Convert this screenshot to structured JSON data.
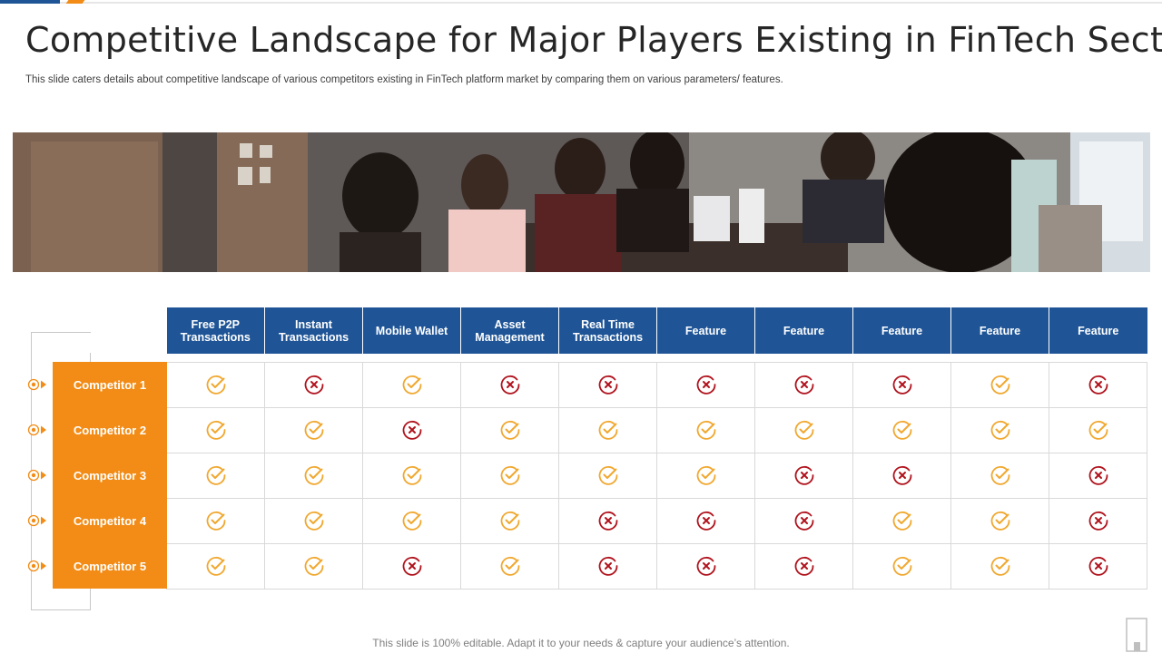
{
  "title": "Competitive Landscape for Major Players Existing in FinTech Sector",
  "subtitle": "This slide caters details about competitive landscape of various competitors existing in FinTech platform market by comparing them on various parameters/ features.",
  "columns": [
    "Free P2P Transactions",
    "Instant Transactions",
    "Mobile Wallet",
    "Asset Management",
    "Real Time Transactions",
    "Feature",
    "Feature",
    "Feature",
    "Feature",
    "Feature"
  ],
  "rows": [
    {
      "label": "Competitor 1",
      "values": [
        "check",
        "cross",
        "check",
        "cross",
        "cross",
        "cross",
        "cross",
        "cross",
        "check",
        "cross"
      ]
    },
    {
      "label": "Competitor 2",
      "values": [
        "check",
        "check",
        "cross",
        "check",
        "check",
        "check",
        "check",
        "check",
        "check",
        "check"
      ]
    },
    {
      "label": "Competitor 3",
      "values": [
        "check",
        "check",
        "check",
        "check",
        "check",
        "check",
        "cross",
        "cross",
        "check",
        "cross"
      ]
    },
    {
      "label": "Competitor 4",
      "values": [
        "check",
        "check",
        "check",
        "check",
        "cross",
        "cross",
        "cross",
        "check",
        "check",
        "cross"
      ]
    },
    {
      "label": "Competitor 5",
      "values": [
        "check",
        "check",
        "cross",
        "check",
        "cross",
        "cross",
        "cross",
        "check",
        "check",
        "cross"
      ]
    }
  ],
  "icons": {
    "check": "check-circle-icon",
    "cross": "cross-circle-icon"
  },
  "colors": {
    "header": "#1f5597",
    "label": "#f28c16",
    "check": "#f0a830",
    "cross": "#b0131d"
  },
  "footer": "This slide is 100% editable. Adapt it to your needs & capture your audience’s attention."
}
